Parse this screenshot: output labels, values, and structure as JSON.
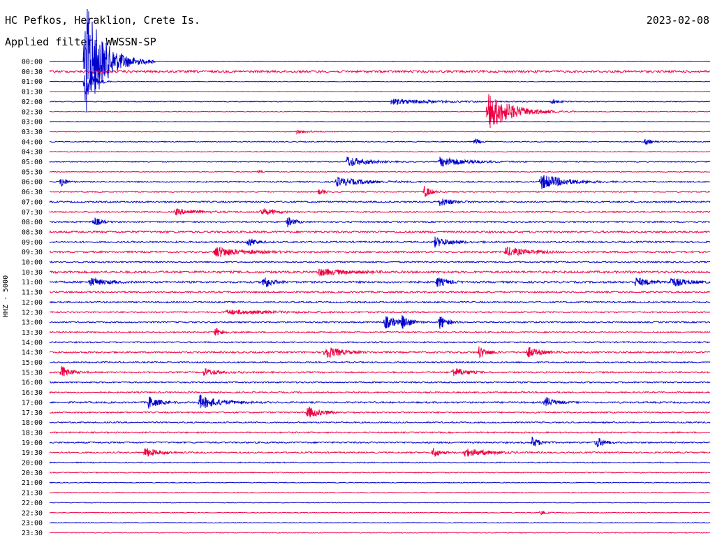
{
  "header": {
    "station": "HC Pefkos, Heraklion, Crete Is.",
    "date": "2023-02-08",
    "filter": "Applied filter: WWSSN-SP",
    "channel": "HHZ - 5000"
  },
  "chart_data": {
    "type": "line",
    "title": "HC Pefkos, Heraklion, Crete Is.",
    "subtitle": "Applied filter: WWSSN-SP",
    "date": "2023-02-08",
    "ylabel": "HHZ - 5000",
    "xlabel": "",
    "grid": false,
    "legend": "none",
    "colors": [
      "#0000cc",
      "#ee0044"
    ],
    "rows": [
      "00:00",
      "00:30",
      "01:00",
      "01:30",
      "02:00",
      "02:30",
      "03:00",
      "03:30",
      "04:00",
      "04:30",
      "05:00",
      "05:30",
      "06:00",
      "06:30",
      "07:00",
      "07:30",
      "08:00",
      "08:30",
      "09:00",
      "09:30",
      "10:00",
      "10:30",
      "11:00",
      "11:30",
      "12:00",
      "12:30",
      "13:00",
      "13:30",
      "14:00",
      "14:30",
      "15:00",
      "15:30",
      "16:00",
      "16:30",
      "17:00",
      "17:30",
      "18:00",
      "18:30",
      "19:00",
      "19:30",
      "20:00",
      "20:30",
      "21:00",
      "21:30",
      "22:00",
      "22:30",
      "23:00",
      "23:30"
    ],
    "row_minutes": 30,
    "noise": [
      0.4,
      1.6,
      0.5,
      0.5,
      0.6,
      0.5,
      0.5,
      0.5,
      0.7,
      0.6,
      0.7,
      0.6,
      0.9,
      0.8,
      1.1,
      1.0,
      1.0,
      1.4,
      1.2,
      1.3,
      1.0,
      1.6,
      1.4,
      1.2,
      1.1,
      1.0,
      1.0,
      1.0,
      1.0,
      1.2,
      1.0,
      1.1,
      1.0,
      1.0,
      1.2,
      1.0,
      1.0,
      1.0,
      1.1,
      1.0,
      0.8,
      0.7,
      0.6,
      0.6,
      0.5,
      0.5,
      0.5,
      0.6
    ],
    "events": [
      {
        "row": 0,
        "t": 1.6,
        "amp": 90,
        "dur": 0.8
      },
      {
        "row": 2,
        "t": 1.6,
        "amp": 30,
        "dur": 0.3
      },
      {
        "row": 4,
        "t": 15.5,
        "amp": 4,
        "dur": 2.0
      },
      {
        "row": 4,
        "t": 22.8,
        "amp": 4,
        "dur": 0.3
      },
      {
        "row": 5,
        "t": 19.9,
        "amp": 28,
        "dur": 1.0
      },
      {
        "row": 7,
        "t": 11.2,
        "amp": 3,
        "dur": 0.6
      },
      {
        "row": 8,
        "t": 19.3,
        "amp": 5,
        "dur": 0.2
      },
      {
        "row": 8,
        "t": 27.0,
        "amp": 4,
        "dur": 0.3
      },
      {
        "row": 10,
        "t": 13.5,
        "amp": 8,
        "dur": 0.8
      },
      {
        "row": 10,
        "t": 17.7,
        "amp": 7,
        "dur": 1.2
      },
      {
        "row": 11,
        "t": 9.5,
        "amp": 3,
        "dur": 0.2
      },
      {
        "row": 12,
        "t": 0.5,
        "amp": 9,
        "dur": 0.2
      },
      {
        "row": 12,
        "t": 13.0,
        "amp": 6,
        "dur": 1.2
      },
      {
        "row": 12,
        "t": 22.3,
        "amp": 11,
        "dur": 1.0
      },
      {
        "row": 13,
        "t": 12.2,
        "amp": 4,
        "dur": 0.3
      },
      {
        "row": 13,
        "t": 17.0,
        "amp": 9,
        "dur": 0.3
      },
      {
        "row": 14,
        "t": 17.7,
        "amp": 6,
        "dur": 0.5
      },
      {
        "row": 15,
        "t": 5.7,
        "amp": 4,
        "dur": 1.0
      },
      {
        "row": 15,
        "t": 9.6,
        "amp": 5,
        "dur": 0.6
      },
      {
        "row": 16,
        "t": 2.0,
        "amp": 7,
        "dur": 0.3
      },
      {
        "row": 16,
        "t": 10.8,
        "amp": 7,
        "dur": 0.3
      },
      {
        "row": 18,
        "t": 9.0,
        "amp": 7,
        "dur": 0.3
      },
      {
        "row": 18,
        "t": 17.5,
        "amp": 7,
        "dur": 0.6
      },
      {
        "row": 19,
        "t": 7.5,
        "amp": 8,
        "dur": 1.0
      },
      {
        "row": 19,
        "t": 20.7,
        "amp": 7,
        "dur": 0.8
      },
      {
        "row": 21,
        "t": 12.2,
        "amp": 5,
        "dur": 1.0
      },
      {
        "row": 22,
        "t": 1.8,
        "amp": 6,
        "dur": 0.6
      },
      {
        "row": 22,
        "t": 9.7,
        "amp": 11,
        "dur": 0.3
      },
      {
        "row": 22,
        "t": 17.6,
        "amp": 8,
        "dur": 0.3
      },
      {
        "row": 22,
        "t": 26.6,
        "amp": 6,
        "dur": 0.6
      },
      {
        "row": 22,
        "t": 28.2,
        "amp": 7,
        "dur": 0.6
      },
      {
        "row": 25,
        "t": 8.0,
        "amp": 3,
        "dur": 2.0
      },
      {
        "row": 26,
        "t": 15.2,
        "amp": 10,
        "dur": 0.5
      },
      {
        "row": 26,
        "t": 16.0,
        "amp": 9,
        "dur": 0.3
      },
      {
        "row": 26,
        "t": 17.7,
        "amp": 11,
        "dur": 0.3
      },
      {
        "row": 27,
        "t": 7.5,
        "amp": 6,
        "dur": 0.3
      },
      {
        "row": 29,
        "t": 12.5,
        "amp": 10,
        "dur": 0.6
      },
      {
        "row": 29,
        "t": 19.5,
        "amp": 9,
        "dur": 0.3
      },
      {
        "row": 29,
        "t": 21.7,
        "amp": 8,
        "dur": 0.5
      },
      {
        "row": 31,
        "t": 0.5,
        "amp": 9,
        "dur": 0.4
      },
      {
        "row": 31,
        "t": 7.0,
        "amp": 5,
        "dur": 0.6
      },
      {
        "row": 31,
        "t": 18.3,
        "amp": 7,
        "dur": 0.5
      },
      {
        "row": 34,
        "t": 4.5,
        "amp": 9,
        "dur": 0.4
      },
      {
        "row": 34,
        "t": 6.8,
        "amp": 10,
        "dur": 0.8
      },
      {
        "row": 34,
        "t": 22.5,
        "amp": 8,
        "dur": 0.4
      },
      {
        "row": 35,
        "t": 11.7,
        "amp": 8,
        "dur": 0.6
      },
      {
        "row": 38,
        "t": 21.9,
        "amp": 8,
        "dur": 0.3
      },
      {
        "row": 38,
        "t": 24.8,
        "amp": 9,
        "dur": 0.3
      },
      {
        "row": 39,
        "t": 4.3,
        "amp": 7,
        "dur": 0.6
      },
      {
        "row": 39,
        "t": 17.4,
        "amp": 8,
        "dur": 0.3
      },
      {
        "row": 39,
        "t": 18.8,
        "amp": 6,
        "dur": 1.0
      },
      {
        "row": 45,
        "t": 22.3,
        "amp": 4,
        "dur": 0.2
      }
    ]
  }
}
